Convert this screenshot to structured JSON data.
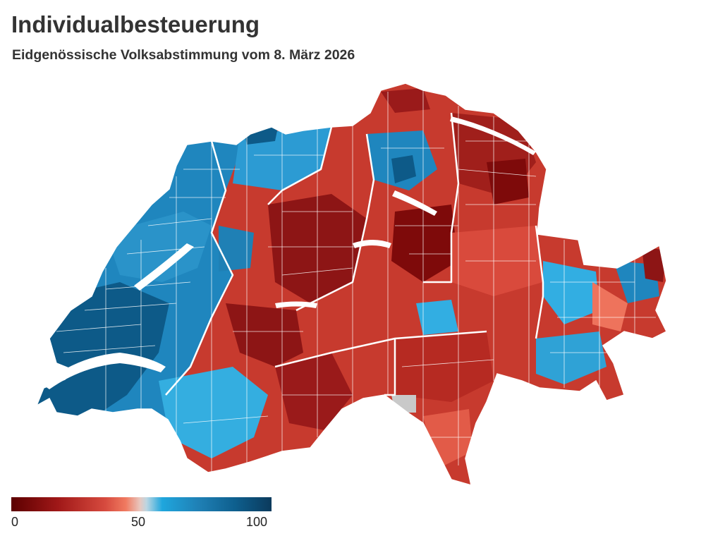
{
  "title": "Individualbesteuerung",
  "subtitle": "Eidgenössische Volksabstimmung vom 8. März 2026",
  "legend": {
    "ticks": [
      "0",
      "50",
      "100"
    ],
    "colors": [
      "#5c0000",
      "#a01818",
      "#d64a3e",
      "#f07a60",
      "#e8c8c0",
      "#bcd6e2",
      "#1fa6dd",
      "#1f80b5",
      "#0e5f8e",
      "#0b3a5c"
    ]
  },
  "palette": {
    "no_dark": "#7e0a0a",
    "no": "#b62a22",
    "no_mid": "#d94a3c",
    "no_light": "#ee735c",
    "yes_light": "#32aee2",
    "yes": "#1f86be",
    "yes_dark": "#0d5a88",
    "no_data": "#c9c9c9"
  }
}
